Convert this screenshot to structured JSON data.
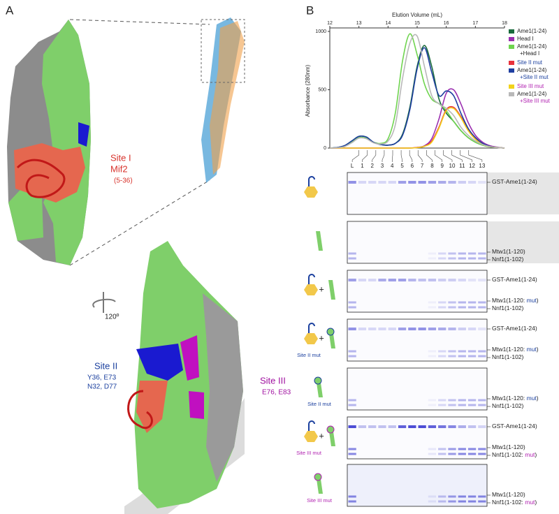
{
  "panel_a": {
    "letter": "A",
    "site1": "Site I",
    "site1_protein": "Mif2",
    "site1_range": "(5-36)",
    "rotation": "120º",
    "site2": "Site II",
    "site2_res1": "Y36, E73",
    "site2_res2": "N32, D77",
    "site3": "Site III",
    "site3_res": "E76, E83"
  },
  "chart_data": {
    "type": "line",
    "panel_letter": "B",
    "xlabel": "Elution Volume (mL)",
    "ylabel": "Absorbance (280nm)",
    "x": [
      12,
      12.25,
      12.5,
      12.75,
      13,
      13.25,
      13.5,
      13.75,
      14,
      14.25,
      14.5,
      14.75,
      15,
      15.25,
      15.5,
      15.75,
      16,
      16.25,
      16.5,
      16.75,
      17,
      17.25,
      17.5,
      17.75,
      18
    ],
    "xlim": [
      12,
      18
    ],
    "xticks": [
      12,
      13,
      14,
      15,
      16,
      17,
      18
    ],
    "ylim": [
      0,
      1000
    ],
    "yticks": [
      0,
      500,
      1000
    ],
    "series": [
      {
        "name": "Ame1(1-24)",
        "color": "#1a6b3c",
        "values": [
          0,
          5,
          20,
          60,
          100,
          95,
          50,
          30,
          25,
          40,
          120,
          350,
          700,
          880,
          700,
          420,
          300,
          230,
          150,
          90,
          50,
          25,
          10,
          5,
          0
        ]
      },
      {
        "name": "Head I",
        "color": "#9b30b0",
        "values": [
          0,
          0,
          0,
          0,
          0,
          0,
          0,
          0,
          0,
          0,
          0,
          0,
          5,
          20,
          80,
          250,
          470,
          500,
          380,
          220,
          110,
          50,
          20,
          8,
          0
        ]
      },
      {
        "name": "Ame1(1-24)",
        "name_line2": "+Head I",
        "name_line2_color": "#222222",
        "color": "#6fd44f",
        "values": [
          0,
          3,
          15,
          50,
          90,
          85,
          50,
          40,
          80,
          300,
          750,
          980,
          800,
          550,
          420,
          380,
          320,
          230,
          150,
          90,
          50,
          25,
          10,
          5,
          0
        ]
      },
      {
        "name": "Site II mut",
        "color": "#e8323c",
        "name_color": "#1a3f9e",
        "values": [
          0,
          0,
          0,
          0,
          0,
          0,
          0,
          0,
          0,
          0,
          0,
          0,
          5,
          15,
          60,
          180,
          330,
          350,
          270,
          160,
          80,
          35,
          15,
          5,
          0
        ]
      },
      {
        "name": "Ame1(1-24)",
        "name_line2": "+Site II mut",
        "name_line2_color": "#1a3f9e",
        "color": "#1f3fa0",
        "values": [
          0,
          5,
          20,
          60,
          100,
          95,
          50,
          30,
          25,
          40,
          110,
          330,
          680,
          860,
          650,
          450,
          490,
          450,
          300,
          170,
          90,
          40,
          15,
          5,
          0
        ]
      },
      {
        "name": "Site III mut",
        "color": "#f2d21c",
        "name_color": "#b020b0",
        "values": [
          0,
          0,
          0,
          0,
          0,
          0,
          0,
          0,
          0,
          0,
          0,
          0,
          3,
          15,
          50,
          170,
          320,
          340,
          260,
          150,
          75,
          30,
          12,
          5,
          0
        ]
      },
      {
        "name": "Ame1(1-24)",
        "name_line2": "+Site III mut",
        "name_line2_color": "#b020b0",
        "color": "#b8b8b8",
        "values": [
          0,
          3,
          12,
          45,
          85,
          80,
          45,
          35,
          60,
          200,
          600,
          900,
          960,
          700,
          450,
          380,
          340,
          280,
          180,
          110,
          60,
          30,
          12,
          5,
          0
        ]
      }
    ]
  },
  "fractions": [
    "L",
    "1",
    "2",
    "3",
    "4",
    "5",
    "6",
    "7",
    "8",
    "9",
    "10",
    "11",
    "12",
    "13"
  ],
  "gels": [
    {
      "labels": [
        {
          "text": "GST-Ame1(1-24)"
        }
      ]
    },
    {
      "labels": [
        {
          "text": "Mtw1(1-120)"
        },
        {
          "text": "Nnf1(1-102)"
        }
      ]
    },
    {
      "plus": "+",
      "mut_color": "#1a3f9e",
      "labels": [
        {
          "text": "GST-Ame1(1-24)"
        },
        {
          "text": "Mtw1(1-120: ",
          "mut": "mut",
          "end": ")"
        },
        {
          "text": "Nnf1(1-102)"
        }
      ]
    },
    {
      "plus": "+",
      "caption": "Site II mut",
      "mut_color": "#1a3f9e",
      "labels": [
        {
          "text": "GST-Ame1(1-24)"
        },
        {
          "text": "Mtw1(1-120: ",
          "mut": "mut",
          "end": ")"
        },
        {
          "text": "Nnf1(1-102)"
        }
      ]
    },
    {
      "caption": "Site II mut",
      "mut_color": "#1a3f9e",
      "labels": [
        {
          "text": "Mtw1(1-120: ",
          "mut": "mut",
          "end": ")"
        },
        {
          "text": "Nnf1(1-102)"
        }
      ]
    },
    {
      "plus": "+",
      "caption": "Site III mut",
      "mut_color": "#b020b0",
      "labels": [
        {
          "text": "GST-Ame1(1-24)"
        },
        {
          "text": "Mtw1(1-120)"
        },
        {
          "text": "Nnf1(1-102: ",
          "mut": "mut",
          "end": ")"
        }
      ]
    },
    {
      "caption": "Site III mut",
      "mut_color": "#b020b0",
      "labels": [
        {
          "text": "Mtw1(1-120)"
        },
        {
          "text": "Nnf1(1-102: ",
          "mut": "mut",
          "end": ")"
        }
      ]
    }
  ]
}
